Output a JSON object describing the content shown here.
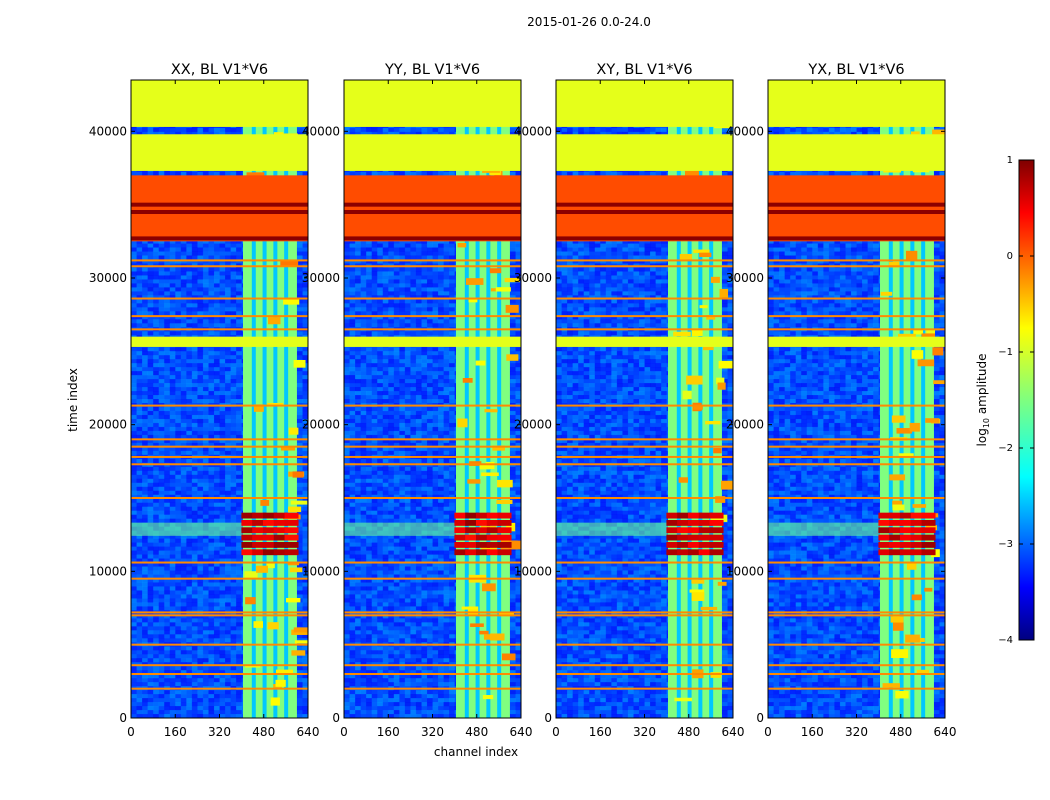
{
  "figure": {
    "suptitle": "2015-01-26 0.0-24.0"
  },
  "chart_data": {
    "type": "heatmap",
    "suptitle": "2015-01-26 0.0-24.0",
    "xlabel": "channel index",
    "ylabel": "time index",
    "xlim": [
      0,
      640
    ],
    "ylim": [
      0,
      43500
    ],
    "x_ticks": [
      0,
      160,
      320,
      480,
      640
    ],
    "x_tick_labels": [
      "0",
      "160",
      "320",
      "480",
      "640"
    ],
    "y_ticks": [
      0,
      10000,
      20000,
      30000,
      40000
    ],
    "y_tick_labels": [
      "0",
      "10000",
      "20000",
      "30000",
      "40000"
    ],
    "panels": [
      {
        "title": "XX, BL V1*V6",
        "polarization": "XX"
      },
      {
        "title": "YY, BL V1*V6",
        "polarization": "YY"
      },
      {
        "title": "XY, BL V1*V6",
        "polarization": "XY"
      },
      {
        "title": "YX, BL V1*V6",
        "polarization": "YX"
      }
    ],
    "colormap": "jet",
    "colorbar": {
      "label": "log10 amplitude",
      "vmin": -4,
      "vmax": 1,
      "ticks": [
        1,
        0,
        -1,
        -2,
        -3,
        -4
      ],
      "tick_labels": [
        "1",
        "0",
        "−1",
        "−2",
        "−3",
        "−4"
      ]
    },
    "features": {
      "background_log_amplitude": -3,
      "rfi_band_channels": [
        405,
        600
      ],
      "rfi_band_log_amplitude": -1.5,
      "flagged_time_ranges": [
        {
          "from": 40300,
          "to": 43500,
          "log_amplitude": -1
        },
        {
          "from": 37300,
          "to": 39800,
          "log_amplitude": -1
        },
        {
          "from": 32500,
          "to": 37000,
          "log_amplitude": 0
        },
        {
          "from": 25300,
          "to": 26000,
          "log_amplitude": -1
        }
      ],
      "strong_rfi_time_range": [
        11000,
        14000
      ]
    }
  }
}
